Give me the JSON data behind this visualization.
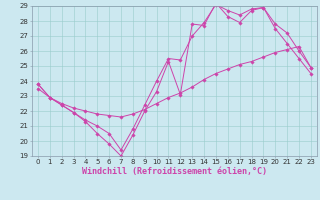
{
  "xlabel": "Windchill (Refroidissement éolien,°C)",
  "bg_color": "#cce8f0",
  "line_color": "#cc44aa",
  "grid_color": "#99cccc",
  "spine_color": "#8899aa",
  "xlim": [
    -0.5,
    23.5
  ],
  "ylim": [
    19,
    29
  ],
  "yticks": [
    19,
    20,
    21,
    22,
    23,
    24,
    25,
    26,
    27,
    28,
    29
  ],
  "xticks": [
    0,
    1,
    2,
    3,
    4,
    5,
    6,
    7,
    8,
    9,
    10,
    11,
    12,
    13,
    14,
    15,
    16,
    17,
    18,
    19,
    20,
    21,
    22,
    23
  ],
  "series": [
    {
      "x": [
        0,
        1,
        2,
        3,
        4,
        5,
        6,
        7,
        8,
        9,
        10,
        11,
        12,
        13,
        14,
        15,
        16,
        17,
        18,
        19,
        20,
        21,
        22,
        23
      ],
      "y": [
        23.8,
        22.9,
        22.4,
        21.9,
        21.3,
        20.5,
        19.8,
        19.0,
        20.4,
        22.0,
        23.3,
        25.3,
        23.1,
        27.8,
        27.7,
        29.2,
        28.3,
        27.9,
        28.7,
        28.9,
        27.8,
        27.2,
        26.0,
        24.9
      ]
    },
    {
      "x": [
        0,
        1,
        2,
        3,
        4,
        5,
        6,
        7,
        8,
        9,
        10,
        11,
        12,
        13,
        14,
        15,
        16,
        17,
        18,
        19,
        20,
        21,
        22,
        23
      ],
      "y": [
        23.8,
        22.9,
        22.4,
        21.9,
        21.4,
        21.0,
        20.5,
        19.4,
        20.8,
        22.4,
        24.0,
        25.5,
        25.4,
        27.0,
        27.9,
        29.1,
        28.7,
        28.4,
        28.8,
        28.9,
        27.5,
        26.5,
        25.5,
        24.5
      ]
    },
    {
      "x": [
        0,
        1,
        2,
        3,
        4,
        5,
        6,
        7,
        8,
        9,
        10,
        11,
        12,
        13,
        14,
        15,
        16,
        17,
        18,
        19,
        20,
        21,
        22,
        23
      ],
      "y": [
        23.5,
        22.9,
        22.5,
        22.2,
        22.0,
        21.8,
        21.7,
        21.6,
        21.8,
        22.1,
        22.5,
        22.9,
        23.2,
        23.6,
        24.1,
        24.5,
        24.8,
        25.1,
        25.3,
        25.6,
        25.9,
        26.1,
        26.3,
        24.9
      ]
    }
  ],
  "tick_fontsize": 5.0,
  "xlabel_fontsize": 6.0,
  "linewidth": 0.7,
  "markersize": 1.8
}
